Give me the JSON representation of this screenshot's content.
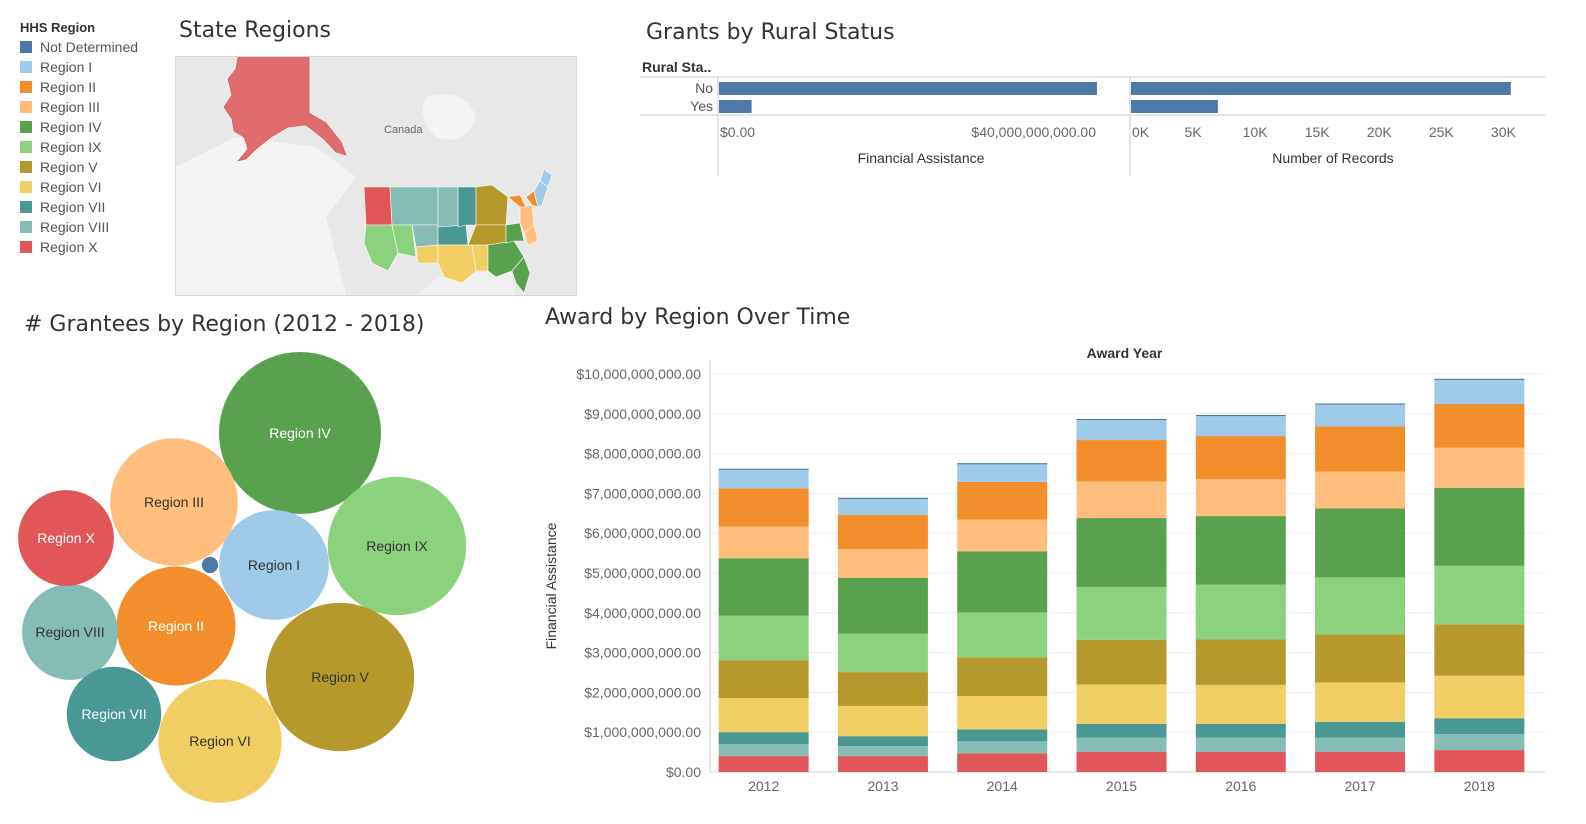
{
  "colors": {
    "Not Determined": "#4e79a7",
    "Region I": "#a0cbe8",
    "Region II": "#f28e2b",
    "Region III": "#ffbe7d",
    "Region IV": "#59a14f",
    "Region IX": "#8cd17d",
    "Region V": "#b6992d",
    "Region VI": "#f1ce63",
    "Region VII": "#499894",
    "Region VIII": "#86bcb6",
    "Region X": "#e15759"
  },
  "legend": {
    "title": "HHS Region",
    "items": [
      "Not Determined",
      "Region I",
      "Region II",
      "Region III",
      "Region IV",
      "Region IX",
      "Region V",
      "Region VI",
      "Region VII",
      "Region VIII",
      "Region X"
    ]
  },
  "map": {
    "title": "State Regions",
    "label_canada": "Canada"
  },
  "rural": {
    "title": "Grants by Rural Status"
  },
  "bubbles": {
    "title": "# Grantees by Region (2012 - 2018)"
  },
  "award": {
    "title": "Award by Region Over Time"
  },
  "chart_data": [
    {
      "type": "bar",
      "orientation": "horizontal",
      "title": "Grants by Rural Status",
      "row_header": "Rural Sta..",
      "categories": [
        "No",
        "Yes"
      ],
      "panels": [
        {
          "measure": "Financial Assistance",
          "values": [
            58000000000,
            5000000000
          ],
          "ticks": [
            "$0.00",
            "$40,000,000,000.00"
          ],
          "tick_values": [
            0,
            40000000000
          ],
          "xlim": [
            0,
            60000000000
          ]
        },
        {
          "measure": "Number of Records",
          "values": [
            30600,
            7000
          ],
          "ticks": [
            "0K",
            "5K",
            "10K",
            "15K",
            "20K",
            "25K",
            "30K"
          ],
          "tick_values": [
            0,
            5000,
            10000,
            15000,
            20000,
            25000,
            30000
          ],
          "xlim": [
            0,
            31500
          ]
        }
      ]
    },
    {
      "type": "bubble",
      "title": "# Grantees by Region (2012 - 2018)",
      "labels": [
        "Region IV",
        "Region IX",
        "Region V",
        "Region III",
        "Region VI",
        "Region II",
        "Region I",
        "Region VIII",
        "Region X",
        "Region VII",
        "Not Determined"
      ],
      "values": [
        100,
        73,
        84,
        62,
        58,
        54,
        46,
        35,
        35,
        34,
        1
      ],
      "label_shown": [
        true,
        true,
        true,
        true,
        true,
        true,
        true,
        true,
        true,
        true,
        false
      ]
    },
    {
      "type": "bar",
      "stacked": true,
      "title": "Award by Region Over Time",
      "column_header": "Award Year",
      "ylabel": "Financial Assistance",
      "categories": [
        "2012",
        "2013",
        "2014",
        "2015",
        "2016",
        "2017",
        "2018"
      ],
      "ylim": [
        0,
        10000000000
      ],
      "yticks": [
        "$0.00",
        "$1,000,000,000.00",
        "$2,000,000,000.00",
        "$3,000,000,000.00",
        "$4,000,000,000.00",
        "$5,000,000,000.00",
        "$6,000,000,000.00",
        "$7,000,000,000.00",
        "$8,000,000,000.00",
        "$9,000,000,000.00",
        "$10,000,000,000.00"
      ],
      "ytick_values": [
        0,
        1000000000,
        2000000000,
        3000000000,
        4000000000,
        5000000000,
        6000000000,
        7000000000,
        8000000000,
        9000000000,
        10000000000
      ],
      "series": [
        {
          "name": "Region X",
          "values": [
            400000000,
            400000000,
            470000000,
            510000000,
            510000000,
            510000000,
            550000000
          ]
        },
        {
          "name": "Region VIII",
          "values": [
            300000000,
            250000000,
            300000000,
            350000000,
            350000000,
            350000000,
            400000000
          ]
        },
        {
          "name": "Region VII",
          "values": [
            300000000,
            250000000,
            300000000,
            350000000,
            350000000,
            400000000,
            400000000
          ]
        },
        {
          "name": "Region VI",
          "values": [
            860000000,
            760000000,
            840000000,
            990000000,
            980000000,
            990000000,
            1070000000
          ]
        },
        {
          "name": "Region V",
          "values": [
            950000000,
            850000000,
            970000000,
            1120000000,
            1140000000,
            1210000000,
            1290000000
          ]
        },
        {
          "name": "Region IX",
          "values": [
            1120000000,
            970000000,
            1130000000,
            1330000000,
            1380000000,
            1430000000,
            1470000000
          ]
        },
        {
          "name": "Region IV",
          "values": [
            1440000000,
            1400000000,
            1530000000,
            1730000000,
            1720000000,
            1730000000,
            1960000000
          ]
        },
        {
          "name": "Region III",
          "values": [
            800000000,
            720000000,
            800000000,
            920000000,
            930000000,
            930000000,
            1010000000
          ]
        },
        {
          "name": "Region II",
          "values": [
            960000000,
            860000000,
            950000000,
            1040000000,
            1080000000,
            1130000000,
            1100000000
          ]
        },
        {
          "name": "Region I",
          "values": [
            460000000,
            400000000,
            440000000,
            500000000,
            500000000,
            550000000,
            600000000
          ]
        },
        {
          "name": "Not Determined",
          "values": [
            30000000,
            30000000,
            30000000,
            30000000,
            30000000,
            30000000,
            30000000
          ]
        }
      ]
    }
  ]
}
